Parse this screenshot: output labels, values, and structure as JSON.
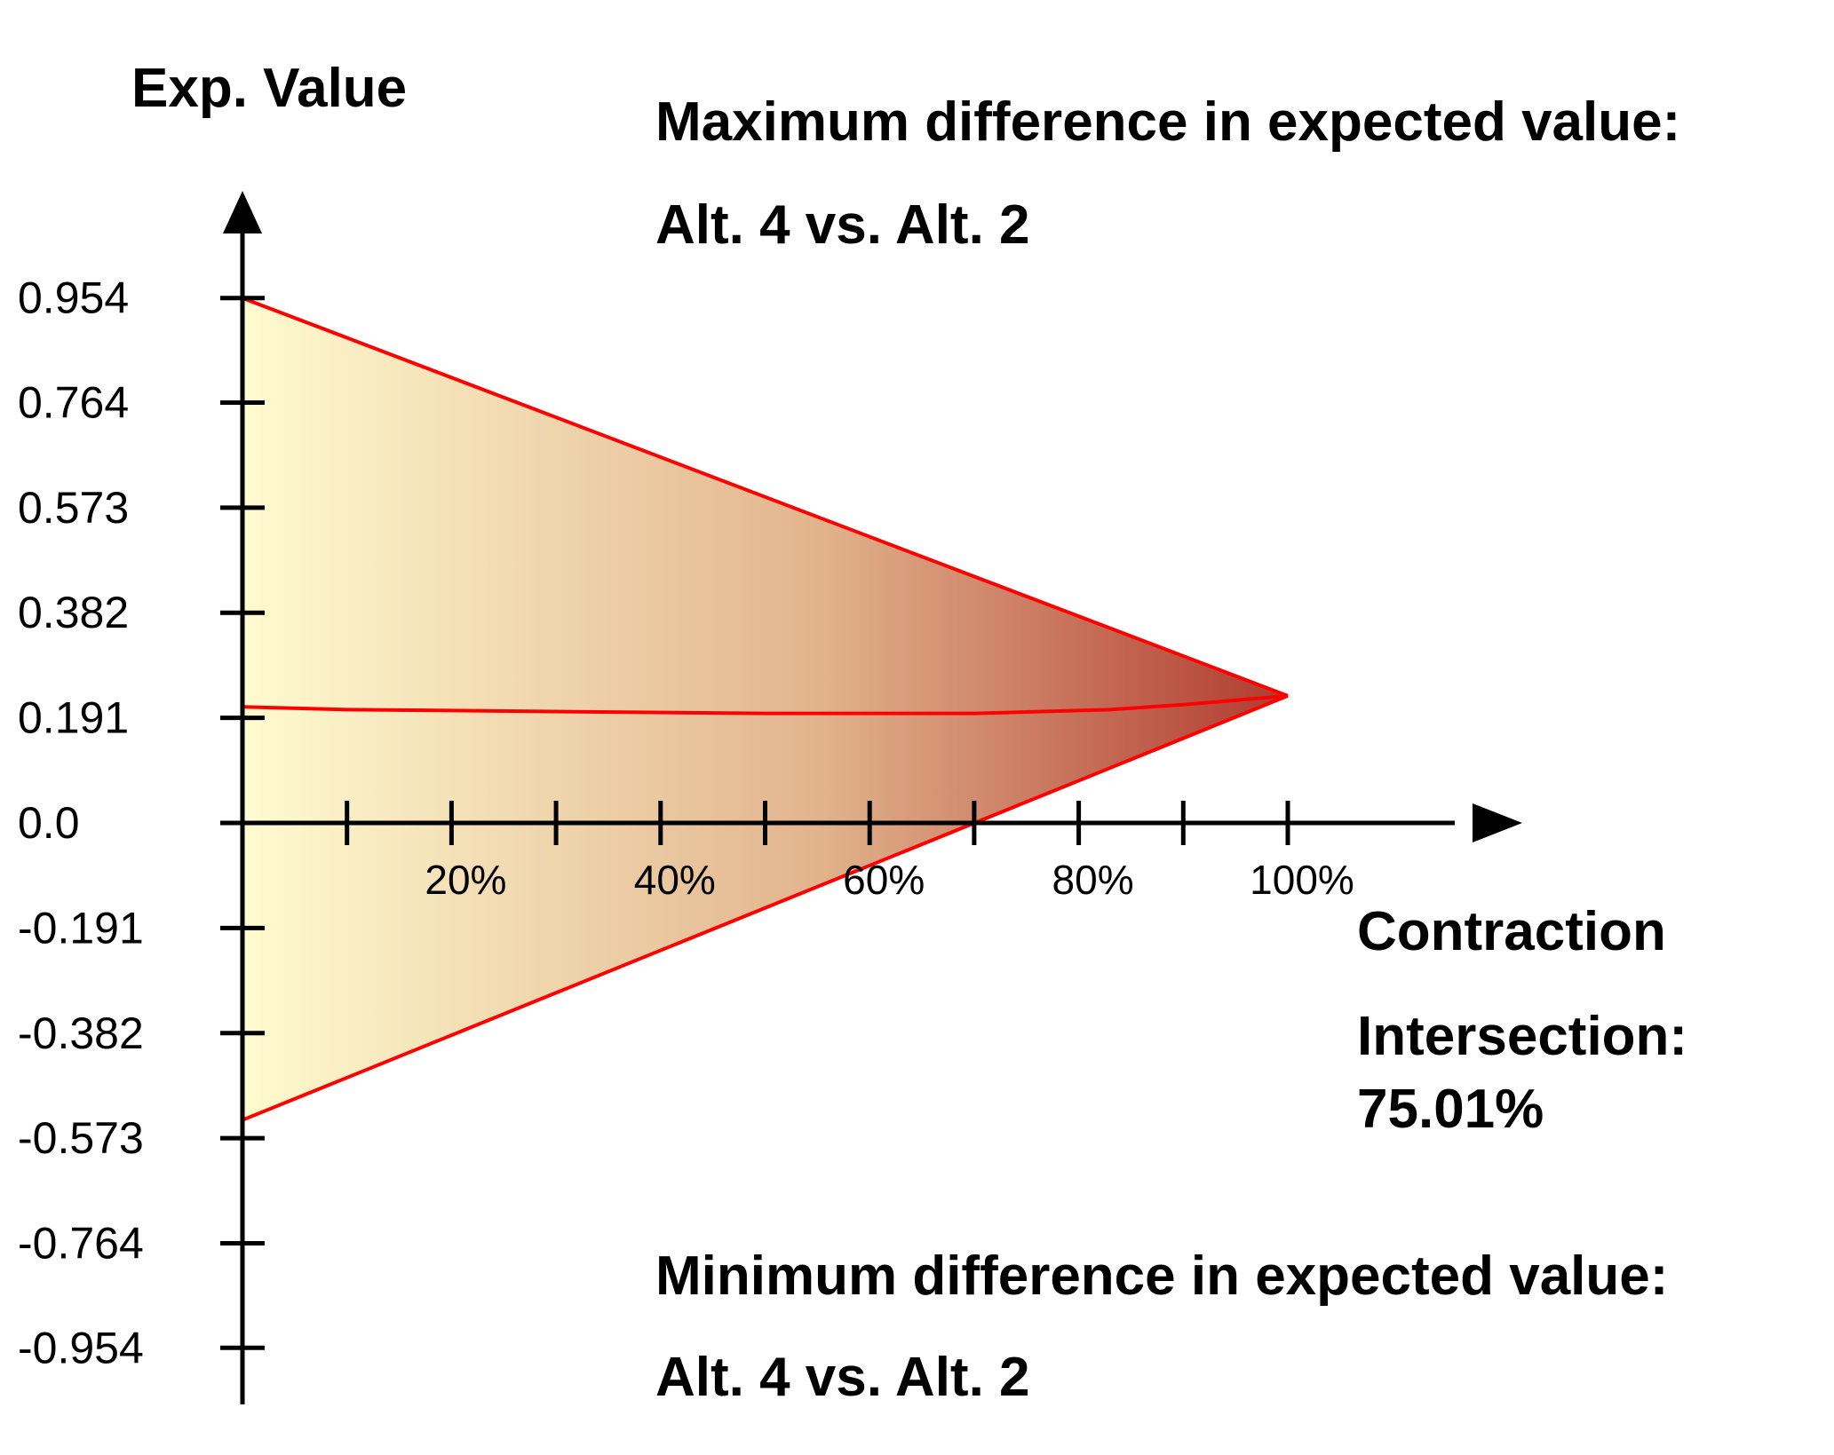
{
  "colors": {
    "background": "#ffffff",
    "axis": "#000000",
    "envelope_line": "#ff0000",
    "gradient_start": "#fffbd0",
    "gradient_mid": "#e2b48e",
    "gradient_end": "#b03a2e"
  },
  "annotations": {
    "max_title": "Maximum difference in expected value:",
    "max_alts": "Alt. 4 vs. Alt. 2",
    "min_title": "Minimum difference in expected value:",
    "min_alts": "Alt. 4 vs. Alt. 2",
    "intersection_label": "Intersection:",
    "intersection_value": "75.01%"
  },
  "chart_data": {
    "type": "area",
    "ylabel": "Exp. Value",
    "xlabel": "Contraction",
    "xlim": [
      0,
      100
    ],
    "ylim": [
      -0.954,
      0.954
    ],
    "x_ticks": [
      10,
      20,
      30,
      40,
      50,
      60,
      70,
      80,
      90,
      100
    ],
    "x_tick_labels": [
      {
        "value": 20,
        "label": "20%"
      },
      {
        "value": 40,
        "label": "40%"
      },
      {
        "value": 60,
        "label": "60%"
      },
      {
        "value": 80,
        "label": "80%"
      },
      {
        "value": 100,
        "label": "100%"
      }
    ],
    "y_ticks": [
      0.954,
      0.764,
      0.573,
      0.382,
      0.191,
      0.0,
      -0.191,
      -0.382,
      -0.573,
      -0.764,
      -0.954
    ],
    "y_tick_labels": [
      "0.954",
      "0.764",
      "0.573",
      "0.382",
      "0.191",
      "0.0",
      "-0.191",
      "-0.382",
      "-0.573",
      "-0.764",
      "-0.954"
    ],
    "max_line": {
      "x": [
        0,
        100
      ],
      "y": [
        0.954,
        0.231
      ]
    },
    "min_line": {
      "x": [
        0,
        100
      ],
      "y": [
        -0.54,
        0.231
      ]
    },
    "mid_line": {
      "x": [
        0,
        10,
        50,
        70,
        83,
        90,
        100
      ],
      "y": [
        0.211,
        0.206,
        0.199,
        0.199,
        0.206,
        0.215,
        0.231
      ]
    },
    "intersection_x": 75.01,
    "grid": false,
    "legend": "none"
  }
}
